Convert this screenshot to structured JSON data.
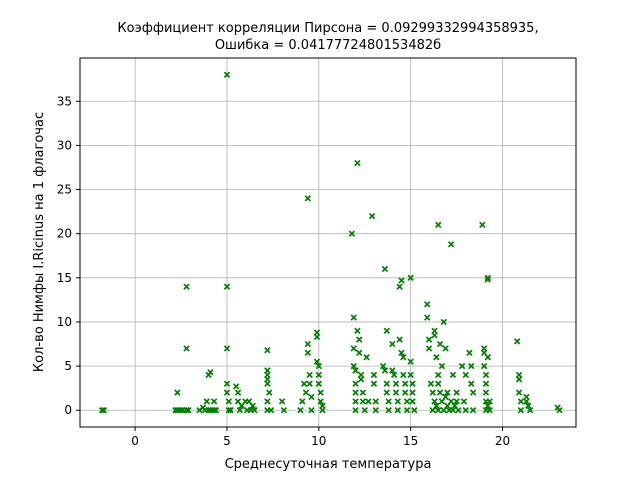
{
  "chart_data": {
    "type": "scatter",
    "title_line1": "Коэффициент корреляции Пирсона = 0.09299332994358935,",
    "title_line2": "Ошибка = 0.0417772480153482б",
    "xlabel": "Среднесуточная температура",
    "ylabel": "Кол-во Нимфы I.Ricinus на 1 флагочас",
    "xlim": [
      -3,
      24
    ],
    "ylim": [
      -1.9,
      39.9
    ],
    "x_ticks": [
      0,
      5,
      10,
      15,
      20
    ],
    "y_ticks": [
      0,
      5,
      10,
      15,
      20,
      25,
      30,
      35
    ],
    "grid": true,
    "marker": "x",
    "marker_color": "#008000",
    "points": [
      [
        -1.8,
        0
      ],
      [
        -1.7,
        0
      ],
      [
        2.2,
        0
      ],
      [
        2.3,
        0
      ],
      [
        2.4,
        0
      ],
      [
        2.5,
        0
      ],
      [
        2.6,
        0
      ],
      [
        2.3,
        2
      ],
      [
        2.8,
        0
      ],
      [
        2.9,
        0
      ],
      [
        2.8,
        7
      ],
      [
        2.8,
        14
      ],
      [
        3.5,
        0
      ],
      [
        3.7,
        0.3
      ],
      [
        3.8,
        0
      ],
      [
        3.9,
        1
      ],
      [
        4.0,
        0
      ],
      [
        4.1,
        0
      ],
      [
        4.2,
        0
      ],
      [
        4.3,
        0
      ],
      [
        4.0,
        4
      ],
      [
        4.1,
        4.3
      ],
      [
        4.3,
        1
      ],
      [
        4.4,
        0
      ],
      [
        5.0,
        38
      ],
      [
        5.0,
        14
      ],
      [
        5.0,
        7
      ],
      [
        5.0,
        3
      ],
      [
        5.0,
        2
      ],
      [
        5.1,
        0
      ],
      [
        5.1,
        1
      ],
      [
        5.2,
        0
      ],
      [
        5.5,
        2.7
      ],
      [
        5.6,
        2
      ],
      [
        5.6,
        1
      ],
      [
        5.7,
        0
      ],
      [
        5.8,
        0.5
      ],
      [
        6.0,
        1
      ],
      [
        6.1,
        0
      ],
      [
        6.2,
        1
      ],
      [
        6.3,
        0
      ],
      [
        6.4,
        0.5
      ],
      [
        6.5,
        0
      ],
      [
        7.2,
        6.8
      ],
      [
        7.2,
        4.5
      ],
      [
        7.2,
        4
      ],
      [
        7.2,
        3.5
      ],
      [
        7.2,
        3
      ],
      [
        7.2,
        1
      ],
      [
        7.2,
        0
      ],
      [
        7.3,
        2
      ],
      [
        7.4,
        0
      ],
      [
        8.0,
        1
      ],
      [
        8.1,
        0
      ],
      [
        9.0,
        0
      ],
      [
        9.1,
        1
      ],
      [
        9.2,
        3
      ],
      [
        9.3,
        2
      ],
      [
        9.4,
        24
      ],
      [
        9.4,
        6.5
      ],
      [
        9.4,
        7.5
      ],
      [
        9.5,
        4
      ],
      [
        9.5,
        3
      ],
      [
        9.6,
        1.5
      ],
      [
        9.6,
        0
      ],
      [
        9.9,
        8.8
      ],
      [
        9.9,
        8.3
      ],
      [
        9.9,
        5.5
      ],
      [
        10.0,
        5
      ],
      [
        10.0,
        4
      ],
      [
        10.0,
        3
      ],
      [
        10.1,
        2
      ],
      [
        10.1,
        1
      ],
      [
        10.2,
        0
      ],
      [
        10.2,
        0.5
      ],
      [
        11.8,
        20
      ],
      [
        11.9,
        10.5
      ],
      [
        11.9,
        7
      ],
      [
        11.9,
        5
      ],
      [
        12.0,
        4.5
      ],
      [
        12.0,
        3
      ],
      [
        12.0,
        2
      ],
      [
        12.0,
        1
      ],
      [
        12.0,
        0
      ],
      [
        12.1,
        28
      ],
      [
        12.1,
        9
      ],
      [
        12.2,
        8
      ],
      [
        12.2,
        6.5
      ],
      [
        12.3,
        4
      ],
      [
        12.3,
        3.5
      ],
      [
        12.4,
        2
      ],
      [
        12.4,
        1
      ],
      [
        12.5,
        0
      ],
      [
        12.6,
        6
      ],
      [
        12.7,
        1
      ],
      [
        12.9,
        22
      ],
      [
        13.0,
        4
      ],
      [
        13.0,
        3
      ],
      [
        13.1,
        1
      ],
      [
        13.1,
        0
      ],
      [
        13.5,
        5
      ],
      [
        13.6,
        4.5
      ],
      [
        13.7,
        3
      ],
      [
        13.7,
        2
      ],
      [
        13.8,
        1
      ],
      [
        13.8,
        0
      ],
      [
        13.6,
        16
      ],
      [
        13.7,
        9
      ],
      [
        14.0,
        7.5
      ],
      [
        14.0,
        4.5
      ],
      [
        14.1,
        4
      ],
      [
        14.2,
        3
      ],
      [
        14.2,
        2
      ],
      [
        14.3,
        1
      ],
      [
        14.3,
        0
      ],
      [
        14.4,
        14
      ],
      [
        14.5,
        14.7
      ],
      [
        14.4,
        8
      ],
      [
        14.5,
        6.5
      ],
      [
        14.6,
        6
      ],
      [
        14.6,
        4
      ],
      [
        14.7,
        3
      ],
      [
        14.7,
        2
      ],
      [
        14.8,
        1
      ],
      [
        14.8,
        0
      ],
      [
        15.0,
        15
      ],
      [
        15.0,
        5.5
      ],
      [
        15.0,
        4
      ],
      [
        15.1,
        3
      ],
      [
        15.1,
        2
      ],
      [
        15.1,
        1
      ],
      [
        15.2,
        0
      ],
      [
        15.9,
        12
      ],
      [
        15.9,
        10.5
      ],
      [
        16.0,
        8
      ],
      [
        16.0,
        7
      ],
      [
        16.1,
        3
      ],
      [
        16.2,
        2
      ],
      [
        16.3,
        9
      ],
      [
        16.3,
        8.5
      ],
      [
        16.4,
        6
      ],
      [
        16.5,
        4
      ],
      [
        16.5,
        3
      ],
      [
        16.5,
        21
      ],
      [
        16.6,
        7.5
      ],
      [
        16.7,
        5
      ],
      [
        16.8,
        10
      ],
      [
        16.9,
        7
      ],
      [
        17.0,
        2
      ],
      [
        17.2,
        18.8
      ],
      [
        17.3,
        4
      ],
      [
        17.5,
        2
      ],
      [
        16.6,
        2
      ],
      [
        16.7,
        1
      ],
      [
        16.8,
        0
      ],
      [
        16.9,
        1.5
      ],
      [
        17.0,
        0.5
      ],
      [
        17.1,
        0
      ],
      [
        17.2,
        1
      ],
      [
        17.3,
        0
      ],
      [
        17.4,
        0.5
      ],
      [
        17.5,
        1
      ],
      [
        17.6,
        0
      ],
      [
        16.2,
        0
      ],
      [
        16.3,
        1
      ],
      [
        16.4,
        0.5
      ],
      [
        16.5,
        0
      ],
      [
        17.8,
        5
      ],
      [
        17.9,
        1
      ],
      [
        18.0,
        0
      ],
      [
        18.0,
        4
      ],
      [
        18.2,
        6.5
      ],
      [
        18.3,
        5
      ],
      [
        18.3,
        3
      ],
      [
        18.4,
        2
      ],
      [
        18.4,
        0
      ],
      [
        18.9,
        21
      ],
      [
        19.0,
        7
      ],
      [
        19.0,
        6.5
      ],
      [
        19.0,
        5
      ],
      [
        19.1,
        4
      ],
      [
        19.1,
        3
      ],
      [
        19.1,
        2
      ],
      [
        19.1,
        1
      ],
      [
        19.1,
        0
      ],
      [
        19.2,
        14.8
      ],
      [
        19.2,
        15
      ],
      [
        19.2,
        6
      ],
      [
        19.2,
        0.5
      ],
      [
        19.3,
        1
      ],
      [
        19.3,
        0
      ],
      [
        20.8,
        7.8
      ],
      [
        20.9,
        4
      ],
      [
        20.9,
        3.5
      ],
      [
        20.9,
        2
      ],
      [
        21.0,
        1
      ],
      [
        21.0,
        0
      ],
      [
        21.3,
        1.5
      ],
      [
        21.3,
        1
      ],
      [
        21.4,
        0.5
      ],
      [
        21.5,
        0
      ],
      [
        23.0,
        0.3
      ],
      [
        23.1,
        0
      ]
    ]
  }
}
